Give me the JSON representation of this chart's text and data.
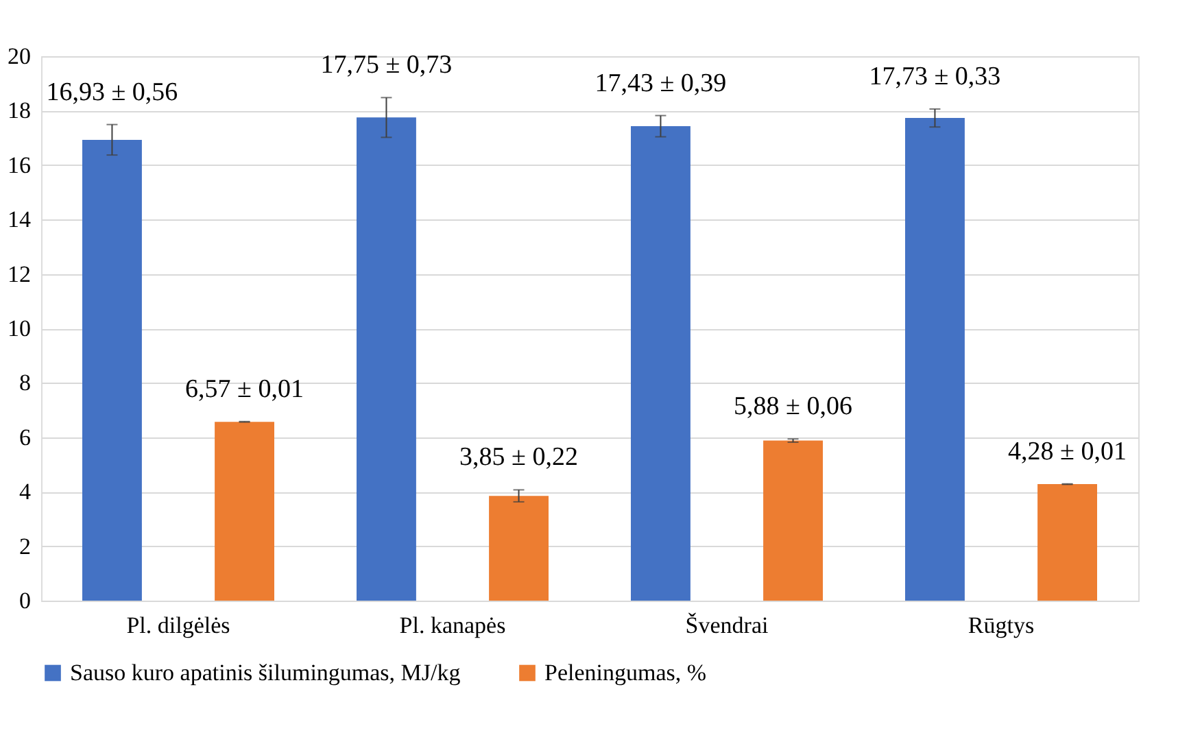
{
  "chart_data": {
    "type": "bar",
    "categories": [
      "Pl. dilgėlės",
      "Pl. kanapės",
      "Švendrai",
      "Rūgtys"
    ],
    "series": [
      {
        "name": "Sauso kuro apatinis šilumingumas, MJ/kg",
        "color": "#4472c4",
        "values": [
          16.93,
          17.75,
          17.43,
          17.73
        ],
        "errors": [
          0.56,
          0.73,
          0.39,
          0.33
        ],
        "value_labels": [
          "16,93 ± 0,56",
          "17,75 ± 0,73",
          "17,43 ± 0,39",
          "17,73 ± 0,33"
        ]
      },
      {
        "name": "Peleningumas, %",
        "color": "#ed7d31",
        "values": [
          6.57,
          3.85,
          5.88,
          4.28
        ],
        "errors": [
          0.01,
          0.22,
          0.06,
          0.01
        ],
        "value_labels": [
          "6,57 ± 0,01",
          "3,85 ± 0,22",
          "5,88 ± 0,06",
          "4,28 ± 0,01"
        ]
      }
    ],
    "ylim": [
      0,
      20
    ],
    "yticks": [
      0,
      2,
      4,
      6,
      8,
      10,
      12,
      14,
      16,
      18,
      20
    ],
    "grid": "y",
    "legend": "bottom"
  }
}
